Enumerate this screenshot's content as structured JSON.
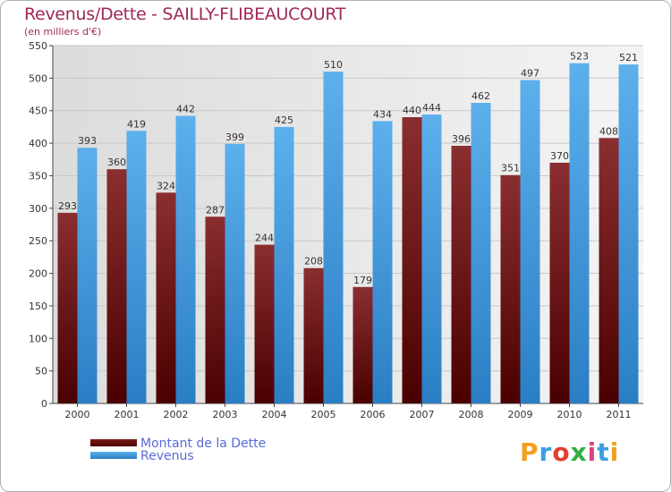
{
  "header": {
    "title": "Revenus/Dette - SAILLY-FLIBEAUCOURT",
    "subtitle": "(en milliers d'€)"
  },
  "chart_data": {
    "type": "bar",
    "title": "Revenus/Dette - SAILLY-FLIBEAUCOURT",
    "ylabel": "(en milliers d'€)",
    "xlabel": "",
    "ylim": [
      0,
      550
    ],
    "yticks": [
      0,
      50,
      100,
      150,
      200,
      250,
      300,
      350,
      400,
      450,
      500,
      550
    ],
    "grid": true,
    "legend_position": "bottom-left",
    "categories": [
      "2000",
      "2001",
      "2002",
      "2003",
      "2004",
      "2005",
      "2006",
      "2007",
      "2008",
      "2009",
      "2010",
      "2011"
    ],
    "series": [
      {
        "name": "Montant de la Dette",
        "color": "#7a1c1c",
        "values": [
          293,
          360,
          324,
          287,
          244,
          208,
          179,
          440,
          396,
          351,
          370,
          408
        ]
      },
      {
        "name": "Revenus",
        "color": "#4da6e6",
        "values": [
          393,
          419,
          442,
          399,
          425,
          510,
          434,
          444,
          462,
          497,
          523,
          521
        ]
      }
    ]
  },
  "legend": {
    "items": [
      {
        "label": "Montant de la Dette",
        "color": "#5a0a0a"
      },
      {
        "label": "Revenus",
        "color": "#4da6e6"
      }
    ]
  },
  "logo": {
    "letters": [
      "P",
      "r",
      "o",
      "x",
      "i",
      "t",
      "i"
    ],
    "colors": [
      "#f0a020",
      "#3aa0e0",
      "#e04030",
      "#30b040",
      "#e04080",
      "#3aa0e0",
      "#f0a020"
    ]
  }
}
